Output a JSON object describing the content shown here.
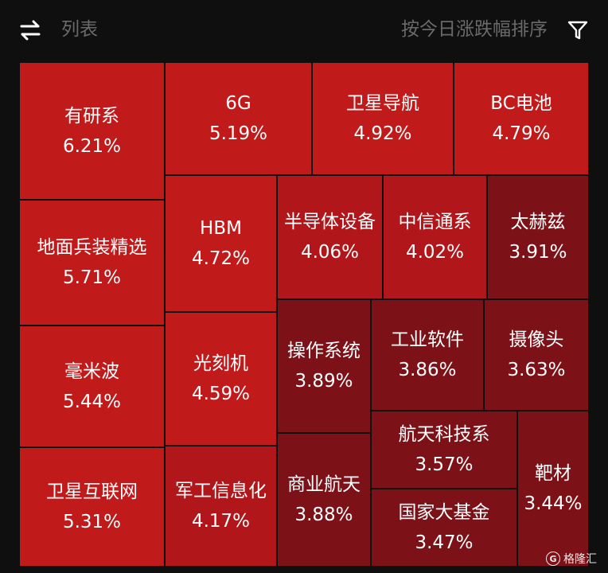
{
  "header": {
    "swap_icon": "swap-arrows-icon",
    "list_label": "列表",
    "sort_label": "按今日涨跌幅排序",
    "filter_icon": "funnel-icon"
  },
  "colors": {
    "background": "#0f0f10",
    "tile_bright": "#c11a1b",
    "tile_mid": "#b0161a",
    "tile_dim": "#96131a",
    "tile_dark": "#7c1118"
  },
  "tiles": [
    {
      "name": "有研系",
      "pct": "6.21%"
    },
    {
      "name": "6G",
      "pct": "5.19%"
    },
    {
      "name": "卫星导航",
      "pct": "4.92%"
    },
    {
      "name": "BC电池",
      "pct": "4.79%"
    },
    {
      "name": "地面兵装精选",
      "pct": "5.71%"
    },
    {
      "name": "HBM",
      "pct": "4.72%"
    },
    {
      "name": "半导体设备",
      "pct": "4.06%"
    },
    {
      "name": "中信通系",
      "pct": "4.02%"
    },
    {
      "name": "太赫兹",
      "pct": "3.91%"
    },
    {
      "name": "毫米波",
      "pct": "5.44%"
    },
    {
      "name": "光刻机",
      "pct": "4.59%"
    },
    {
      "name": "操作系统",
      "pct": "3.89%"
    },
    {
      "name": "工业软件",
      "pct": "3.86%"
    },
    {
      "name": "摄像头",
      "pct": "3.63%"
    },
    {
      "name": "卫星互联网",
      "pct": "5.31%"
    },
    {
      "name": "军工信息化",
      "pct": "4.17%"
    },
    {
      "name": "商业航天",
      "pct": "3.88%"
    },
    {
      "name": "航天科技系",
      "pct": "3.57%"
    },
    {
      "name": "靶材",
      "pct": "3.44%"
    },
    {
      "name": "国家大基金",
      "pct": "3.47%"
    }
  ],
  "watermark": {
    "text": "格隆汇",
    "logo_letter": "G"
  }
}
